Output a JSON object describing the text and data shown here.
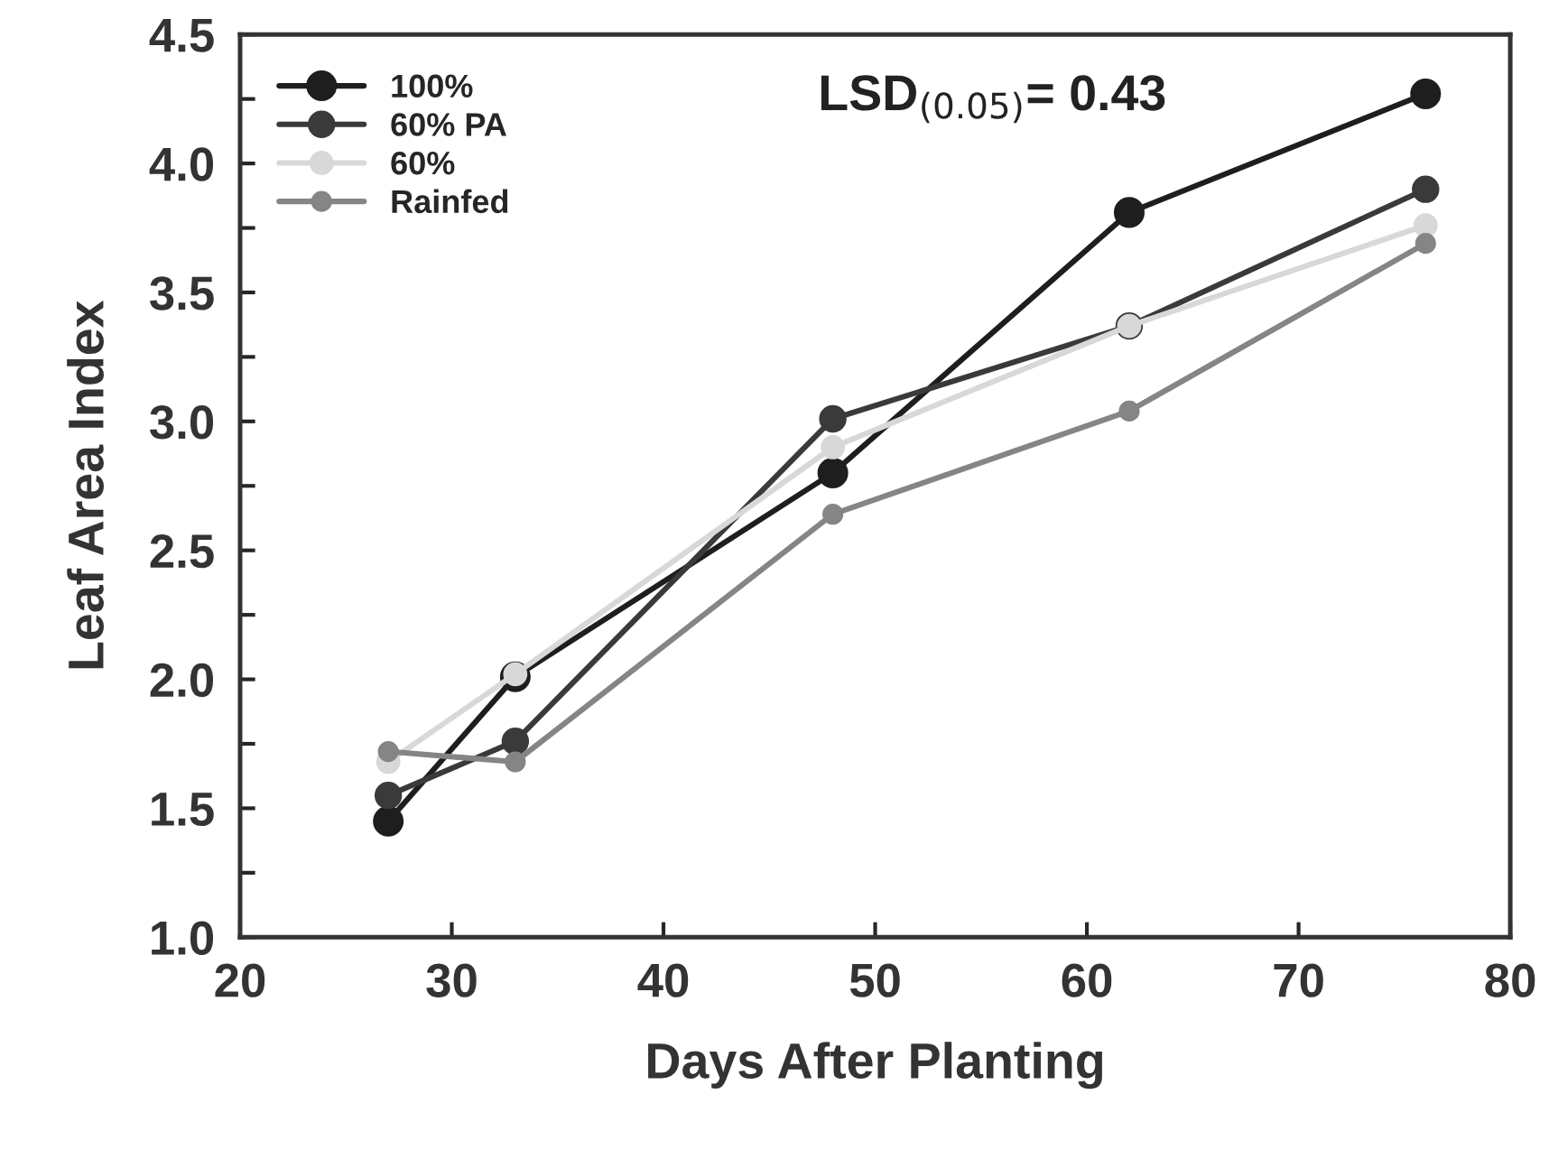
{
  "chart_data": {
    "type": "line",
    "xlabel": "Days After Planting",
    "ylabel": "Leaf Area Index",
    "x": [
      27,
      33,
      48,
      62,
      76
    ],
    "series": [
      {
        "name": "100%",
        "color": "#1e1e1e",
        "values": [
          1.45,
          2.01,
          2.8,
          3.81,
          4.27
        ]
      },
      {
        "name": "60% PA",
        "color": "#3a3a3a",
        "values": [
          1.55,
          1.76,
          3.01,
          3.37,
          3.9
        ]
      },
      {
        "name": "60%",
        "color": "#d8d8d8",
        "values": [
          1.68,
          2.02,
          2.9,
          3.37,
          3.76
        ]
      },
      {
        "name": "Rainfed",
        "color": "#858585",
        "values": [
          1.72,
          1.68,
          2.64,
          3.04,
          3.69
        ]
      }
    ],
    "xlim": [
      20,
      80
    ],
    "xticks": [
      20,
      30,
      40,
      50,
      60,
      70,
      80
    ],
    "ylim": [
      1.0,
      4.5
    ],
    "yticks": [
      {
        "value": 1.0,
        "label": "1.0"
      },
      {
        "value": 1.25,
        "label": null
      },
      {
        "value": 1.5,
        "label": "1.5"
      },
      {
        "value": 1.75,
        "label": null
      },
      {
        "value": 2.0,
        "label": "2.0"
      },
      {
        "value": 2.25,
        "label": null
      },
      {
        "value": 2.5,
        "label": "2.5"
      },
      {
        "value": 2.75,
        "label": null
      },
      {
        "value": 3.0,
        "label": "3.0"
      },
      {
        "value": 3.25,
        "label": null
      },
      {
        "value": 3.5,
        "label": "3.5"
      },
      {
        "value": 3.75,
        "label": null
      },
      {
        "value": 4.0,
        "label": "4.0"
      },
      {
        "value": 4.25,
        "label": null
      },
      {
        "value": 4.5,
        "label": "4.5"
      }
    ],
    "annotations": [
      "LSD$_{(0.05)}$= 0.43"
    ],
    "legend": "top left",
    "grid": false,
    "marker": "circle",
    "line_style": "solid"
  }
}
